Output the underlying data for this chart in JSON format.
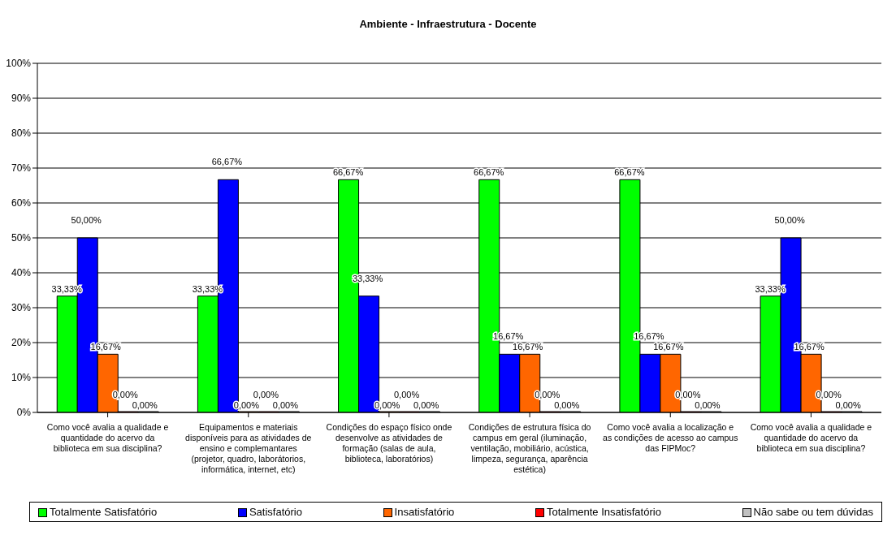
{
  "chart_data": {
    "type": "bar",
    "title": "Ambiente - Infraestrutura - Docente",
    "categories": [
      "Como você avalia a qualidade e quantidade do acervo da biblioteca em sua disciplina?",
      "Equipamentos e materiais disponíveis para as atividades de ensino e complemantares (projetor, quadro, laborátorios, informática, internet, etc)",
      "Condições do espaço físico onde desenvolve as atividades de formação (salas de aula, biblioteca, laboratórios)",
      "Condições de estrutura física do campus em geral (iluminação, ventilação, mobiliário, acústica, limpeza, segurança, aparência estética)",
      "Como você avalia a localização e as condições de acesso ao campus das FIPMoc?",
      "Como você avalia a qualidade e quantidade do acervo da biblioteca em sua disciplina?"
    ],
    "series": [
      {
        "name": "Totalmente Satisfatório",
        "color": "#00ff00",
        "values": [
          33.33,
          33.33,
          66.67,
          66.67,
          66.67,
          33.33
        ],
        "value_labels": [
          "33,33%",
          "33,33%",
          "66,67%",
          "66,67%",
          "66,67%",
          "33,33%"
        ]
      },
      {
        "name": "Satisfatório",
        "color": "#0000ff",
        "values": [
          50,
          66.67,
          33.33,
          16.67,
          16.67,
          50
        ],
        "value_labels": [
          "50,00%",
          "66,67%",
          "33,33%",
          "16,67%",
          "16,67%",
          "50,00%"
        ]
      },
      {
        "name": "Insatisfatório",
        "color": "#ff6600",
        "values": [
          16.67,
          0,
          0,
          16.67,
          16.67,
          16.67
        ],
        "value_labels": [
          "16,67%",
          "0,00%",
          "0,00%",
          "16,67%",
          "16,67%",
          "16,67%"
        ]
      },
      {
        "name": "Totalmente Insatisfatório",
        "color": "#ff0000",
        "values": [
          0,
          0,
          0,
          0,
          0,
          0
        ],
        "value_labels": [
          "0,00%",
          "0,00%",
          "0,00%",
          "0,00%",
          "0,00%",
          "0,00%"
        ]
      },
      {
        "name": "Não sabe ou tem dúvidas",
        "color": "#c0c0c0",
        "values": [
          0,
          0,
          0,
          0,
          0,
          0
        ],
        "value_labels": [
          "0,00%",
          "0,00%",
          "0,00%",
          "0,00%",
          "0,00%",
          "0,00%"
        ]
      }
    ],
    "ylim": [
      0,
      100
    ],
    "yticks": [
      {
        "value": 0,
        "label": "0%"
      },
      {
        "value": 10,
        "label": "10%"
      },
      {
        "value": 20,
        "label": "20%"
      },
      {
        "value": 30,
        "label": "30%"
      },
      {
        "value": 40,
        "label": "40%"
      },
      {
        "value": 50,
        "label": "50%"
      },
      {
        "value": 60,
        "label": "60%"
      },
      {
        "value": 70,
        "label": "70%"
      },
      {
        "value": 80,
        "label": "80%"
      },
      {
        "value": 90,
        "label": "90%"
      },
      {
        "value": 100,
        "label": "100%"
      }
    ],
    "grid": "y",
    "legend": "bottom"
  }
}
